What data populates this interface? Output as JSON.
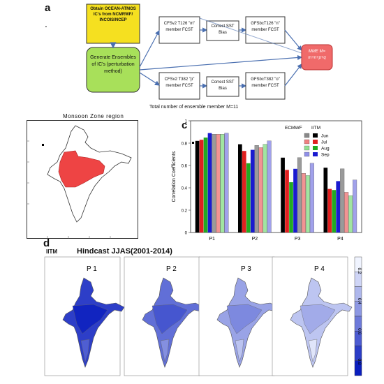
{
  "panels": {
    "a": "a",
    "b": "b",
    "c": "c",
    "d": "d"
  },
  "flow": {
    "source_box": "Obtain OCEAN-ATMOS IC's from NCMRWF/ INCOIS/NCEP",
    "ensemble_box": "Generate Ensembles of IC's (perturbation method)",
    "top_model": "CFSv2 T126 \"m\" member FCST",
    "bottom_model": "CFSv2 T382 \"p\" member FCST",
    "top_correct": "Correct SST Bias",
    "bottom_correct": "Correct SST Bias",
    "top_gfs": "GFSbcT126 \"n\" member FCST",
    "bottom_gfs": "GFSbcT382 \"o\" member FCST",
    "mme_box": "MME M= m+n+p+q",
    "caption": "Total number of ensemble member M=11",
    "colors": {
      "source": "#f5e020",
      "ensemble": "#a8e05a",
      "mme": "#f06a6a"
    }
  },
  "map_b": {
    "title": "Monsoon Zone region",
    "region_color": "#ee4444"
  },
  "chart_data": {
    "type": "bar",
    "categories": [
      "P1",
      "P2",
      "P3",
      "P4"
    ],
    "ylabel": "Correlation Coefficients",
    "ylim": [
      0,
      1.0
    ],
    "yticks": [
      "0",
      "0.2",
      "0.4",
      "0.6",
      "0.8",
      "1"
    ],
    "legend": {
      "group_ecmwf": "ECMWF",
      "group_iitm": "IITM",
      "placement": "top-right"
    },
    "series": [
      {
        "name": "Jun",
        "group": "ECMWF",
        "color": "#000000",
        "values": [
          0.82,
          0.79,
          0.67,
          0.58
        ]
      },
      {
        "name": "Jul",
        "group": "ECMWF",
        "color": "#e02020",
        "values": [
          0.83,
          0.73,
          0.56,
          0.39
        ]
      },
      {
        "name": "Aug",
        "group": "ECMWF",
        "color": "#22aa22",
        "values": [
          0.85,
          0.62,
          0.45,
          0.38
        ]
      },
      {
        "name": "Sep",
        "group": "ECMWF",
        "color": "#1a1ad0",
        "values": [
          0.89,
          0.74,
          0.57,
          0.46
        ]
      },
      {
        "name": "Jun",
        "group": "IITM",
        "color": "#888888",
        "values": [
          0.88,
          0.78,
          0.67,
          0.57
        ]
      },
      {
        "name": "Jul",
        "group": "IITM",
        "color": "#f08080",
        "values": [
          0.88,
          0.76,
          0.53,
          0.36
        ]
      },
      {
        "name": "Aug",
        "group": "IITM",
        "color": "#90e090",
        "values": [
          0.88,
          0.79,
          0.51,
          0.33
        ]
      },
      {
        "name": "Sep",
        "group": "IITM",
        "color": "#9090e8",
        "values": [
          0.89,
          0.82,
          0.62,
          0.47
        ]
      }
    ]
  },
  "maps_d": {
    "logo": "IITM",
    "title": "Hindcast JJAS(2001-2014)",
    "maps": [
      {
        "label": "P 1",
        "intensity": 0.85
      },
      {
        "label": "P 2",
        "intensity": 0.62
      },
      {
        "label": "P 3",
        "intensity": 0.38
      },
      {
        "label": "P 4",
        "intensity": 0.22
      }
    ],
    "colorbar_ticks": [
      "0.2",
      "0.4",
      "0.6",
      "0.8"
    ]
  }
}
